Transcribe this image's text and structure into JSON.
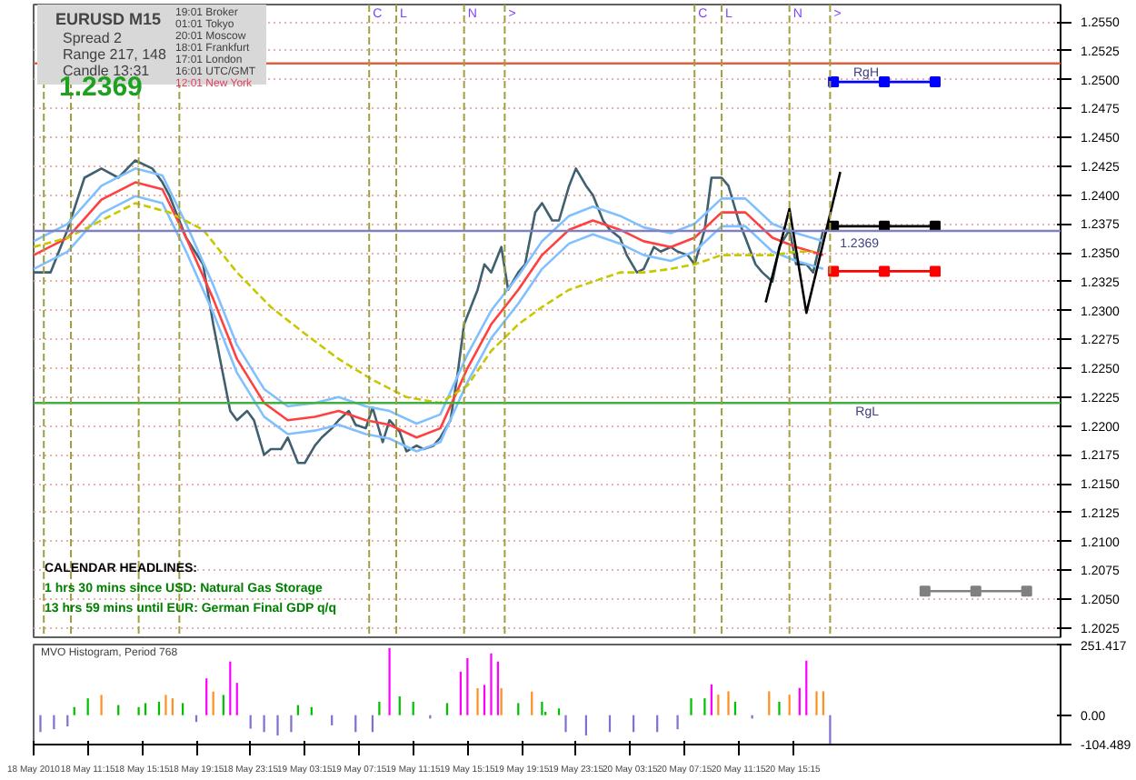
{
  "chart_data": [
    {
      "type": "line",
      "title": "EURUSD  M15",
      "tick_labels": "y",
      "grid": "y",
      "xlim": [
        "2010-05-18T07:15",
        "2010-05-21T11:00"
      ],
      "ylim": [
        1.2017,
        1.2565
      ],
      "yticks": [
        {
          "value": 1.2025,
          "label": "1.2025"
        },
        {
          "value": 1.205,
          "label": "1.2050"
        },
        {
          "value": 1.2075,
          "label": "1.2075"
        },
        {
          "value": 1.21,
          "label": "1.2100"
        },
        {
          "value": 1.2125,
          "label": "1.2125"
        },
        {
          "value": 1.215,
          "label": "1.2150"
        },
        {
          "value": 1.2175,
          "label": "1.2175"
        },
        {
          "value": 1.22,
          "label": "1.2200"
        },
        {
          "value": 1.2225,
          "label": "1.2225"
        },
        {
          "value": 1.225,
          "label": "1.2250"
        },
        {
          "value": 1.2275,
          "label": "1.2275"
        },
        {
          "value": 1.23,
          "label": "1.2300"
        },
        {
          "value": 1.2325,
          "label": "1.2325"
        },
        {
          "value": 1.235,
          "label": "1.2350"
        },
        {
          "value": 1.2375,
          "label": "1.2375"
        },
        {
          "value": 1.24,
          "label": "1.2400"
        },
        {
          "value": 1.2425,
          "label": "1.2425"
        },
        {
          "value": 1.245,
          "label": "1.2450"
        },
        {
          "value": 1.2475,
          "label": "1.2475"
        },
        {
          "value": 1.25,
          "label": "1.2500"
        },
        {
          "value": 1.2525,
          "label": "1.2525"
        },
        {
          "value": 1.255,
          "label": "1.2550"
        }
      ],
      "annotations": [
        "Spread  2",
        "Range  217, 148",
        "Candle  13:31",
        "1.2369",
        "19:01  Broker",
        "01:01  Tokyo",
        "20:01  Moscow",
        "18:01  Frankfurt",
        "17:01  London",
        "16:01  UTC/GMT",
        "12:01  New York",
        "CALENDAR  HEADLINES:",
        "1 hrs 30 mins since USD: Natural Gas Storage",
        "13 hrs 59 mins until EUR: German Final GDP q/q"
      ],
      "ref_lines": [
        {
          "axis": "y",
          "value": 1.2514,
          "label": "RgH",
          "color": "#e06040"
        },
        {
          "axis": "y",
          "value": 1.222,
          "label": "RgL",
          "color": "#40b040"
        },
        {
          "axis": "y",
          "value": 1.2369,
          "label": "1.2369",
          "color": "#8080c0"
        },
        {
          "axis": "x",
          "value": "2010-05-18T08:00",
          "label": null,
          "color": "#a0a040",
          "line_style": "dashed"
        },
        {
          "axis": "x",
          "value": "2010-05-18T10:00",
          "label": null,
          "color": "#a0a040",
          "line_style": "dashed"
        },
        {
          "axis": "x",
          "value": "2010-05-18T15:00",
          "label": null,
          "color": "#a0a040",
          "line_style": "dashed"
        },
        {
          "axis": "x",
          "value": "2010-05-18T18:00",
          "label": null,
          "color": "#a0a040",
          "line_style": "dashed"
        },
        {
          "axis": "x",
          "value": "2010-05-19T08:00",
          "label": "C",
          "color": "#a0a040",
          "line_style": "dashed"
        },
        {
          "axis": "x",
          "value": "2010-05-19T10:00",
          "label": "L",
          "color": "#a0a040",
          "line_style": "dashed"
        },
        {
          "axis": "x",
          "value": "2010-05-19T15:00",
          "label": "N",
          "color": "#a0a040",
          "line_style": "dashed"
        },
        {
          "axis": "x",
          "value": "2010-05-19T18:00",
          "label": ">",
          "color": "#a0a040",
          "line_style": "dashed"
        },
        {
          "axis": "x",
          "value": "2010-05-20T08:00",
          "label": "C",
          "color": "#a0a040",
          "line_style": "dashed"
        },
        {
          "axis": "x",
          "value": "2010-05-20T10:00",
          "label": "L",
          "color": "#a0a040",
          "line_style": "dashed"
        },
        {
          "axis": "x",
          "value": "2010-05-20T15:00",
          "label": "N",
          "color": "#a0a040",
          "line_style": "dashed"
        },
        {
          "axis": "x",
          "value": "2010-05-20T18:00",
          "label": ">",
          "color": "#a0a040",
          "line_style": "dashed"
        }
      ],
      "series": [
        {
          "color": "#406070",
          "line_style": "solid",
          "marker": "none",
          "x": [
            "2010-05-18T07:15",
            "2010-05-18T08:30",
            "2010-05-18T09:45",
            "2010-05-18T11:00",
            "2010-05-18T12:15",
            "2010-05-18T13:30",
            "2010-05-18T14:45",
            "2010-05-18T16:00",
            "2010-05-18T16:45",
            "2010-05-18T17:15",
            "2010-05-18T18:30",
            "2010-05-18T19:45",
            "2010-05-18T20:30",
            "2010-05-18T21:00",
            "2010-05-18T21:45",
            "2010-05-18T22:15",
            "2010-05-18T23:00",
            "2010-05-18T23:30",
            "2010-05-19T00:15",
            "2010-05-19T00:45",
            "2010-05-19T01:30",
            "2010-05-19T02:00",
            "2010-05-19T02:45",
            "2010-05-19T03:15",
            "2010-05-19T04:00",
            "2010-05-19T04:30",
            "2010-05-19T05:15",
            "2010-05-19T05:45",
            "2010-05-19T06:30",
            "2010-05-19T07:00",
            "2010-05-19T07:45",
            "2010-05-19T08:15",
            "2010-05-19T09:00",
            "2010-05-19T09:30",
            "2010-05-19T10:15",
            "2010-05-19T10:45",
            "2010-05-19T11:30",
            "2010-05-19T12:00",
            "2010-05-19T12:45",
            "2010-05-19T13:15",
            "2010-05-19T14:00",
            "2010-05-19T14:30",
            "2010-05-19T15:00",
            "2010-05-19T15:30",
            "2010-05-19T16:00",
            "2010-05-19T16:30",
            "2010-05-19T17:00",
            "2010-05-19T17:45",
            "2010-05-19T18:15",
            "2010-05-19T19:00",
            "2010-05-19T19:30",
            "2010-05-19T20:15",
            "2010-05-19T20:45",
            "2010-05-19T21:30",
            "2010-05-19T22:00",
            "2010-05-19T22:45",
            "2010-05-19T23:15",
            "2010-05-20T00:00",
            "2010-05-20T00:30",
            "2010-05-20T01:15",
            "2010-05-20T01:45",
            "2010-05-20T02:30",
            "2010-05-20T03:00",
            "2010-05-20T03:45",
            "2010-05-20T04:15",
            "2010-05-20T05:00",
            "2010-05-20T05:30",
            "2010-05-20T06:15",
            "2010-05-20T06:45",
            "2010-05-20T07:30",
            "2010-05-20T08:00",
            "2010-05-20T08:45",
            "2010-05-20T09:15",
            "2010-05-20T10:00",
            "2010-05-20T10:30",
            "2010-05-20T11:15",
            "2010-05-20T11:45",
            "2010-05-20T12:30",
            "2010-05-20T13:00",
            "2010-05-20T13:45",
            "2010-05-20T14:15",
            "2010-05-20T15:00",
            "2010-05-20T15:30",
            "2010-05-20T16:15",
            "2010-05-20T16:45",
            "2010-05-20T17:30"
          ],
          "values": [
            1.2333,
            1.2333,
            1.237,
            1.2415,
            1.2423,
            1.2415,
            1.243,
            1.2423,
            1.2411,
            1.24,
            1.2363,
            1.234,
            1.2288,
            1.2258,
            1.2213,
            1.2205,
            1.2213,
            1.2205,
            1.2175,
            1.218,
            1.218,
            1.219,
            1.2168,
            1.2168,
            1.2183,
            1.219,
            1.2198,
            1.2205,
            1.2213,
            1.2201,
            1.2198,
            1.2216,
            1.2186,
            1.2205,
            1.2195,
            1.2178,
            1.2183,
            1.218,
            1.2183,
            1.219,
            1.2205,
            1.2243,
            1.2288,
            1.2303,
            1.2318,
            1.234,
            1.2333,
            1.2355,
            1.2318,
            1.2333,
            1.234,
            1.2385,
            1.2393,
            1.2378,
            1.2378,
            1.2408,
            1.2423,
            1.2408,
            1.24,
            1.2378,
            1.237,
            1.2363,
            1.2348,
            1.2333,
            1.2336,
            1.2355,
            1.2351,
            1.2355,
            1.2351,
            1.2348,
            1.234,
            1.237,
            1.2415,
            1.2415,
            1.2408,
            1.2378,
            1.2363,
            1.234,
            1.2333,
            1.2325,
            1.2355,
            1.237,
            1.234,
            1.234,
            1.2333,
            1.237
          ]
        },
        {
          "color": "#80c0ff",
          "line_style": "solid",
          "marker": "none",
          "x": [
            "2010-05-18T07:15",
            "2010-05-18T09:45",
            "2010-05-18T12:15",
            "2010-05-18T14:45",
            "2010-05-18T16:45",
            "2010-05-18T18:30",
            "2010-05-18T20:30",
            "2010-05-18T22:15",
            "2010-05-19T00:15",
            "2010-05-19T02:00",
            "2010-05-19T04:00",
            "2010-05-19T05:45",
            "2010-05-19T07:45",
            "2010-05-19T09:30",
            "2010-05-19T11:30",
            "2010-05-19T13:15",
            "2010-05-19T15:15",
            "2010-05-19T17:00",
            "2010-05-19T19:00",
            "2010-05-19T20:45",
            "2010-05-19T22:45",
            "2010-05-20T00:30",
            "2010-05-20T02:30",
            "2010-05-20T04:15",
            "2010-05-20T06:15",
            "2010-05-20T08:00",
            "2010-05-20T10:00",
            "2010-05-20T11:45",
            "2010-05-20T13:45",
            "2010-05-20T15:30",
            "2010-05-20T17:30"
          ],
          "values": [
            1.236,
            1.2375,
            1.2408,
            1.2423,
            1.2417,
            1.2375,
            1.2322,
            1.227,
            1.2232,
            1.2217,
            1.222,
            1.2225,
            1.2217,
            1.2213,
            1.2202,
            1.221,
            1.2262,
            1.23,
            1.233,
            1.236,
            1.2382,
            1.239,
            1.2382,
            1.2372,
            1.2367,
            1.2375,
            1.2397,
            1.2397,
            1.2375,
            1.2367,
            1.236
          ]
        },
        {
          "color": "#ff4040",
          "line_style": "solid",
          "marker": "none",
          "x": [
            "2010-05-18T07:15",
            "2010-05-18T09:45",
            "2010-05-18T12:15",
            "2010-05-18T14:45",
            "2010-05-18T16:45",
            "2010-05-18T18:30",
            "2010-05-18T20:30",
            "2010-05-18T22:15",
            "2010-05-19T00:15",
            "2010-05-19T02:00",
            "2010-05-19T04:00",
            "2010-05-19T05:45",
            "2010-05-19T07:45",
            "2010-05-19T09:30",
            "2010-05-19T11:30",
            "2010-05-19T13:15",
            "2010-05-19T15:15",
            "2010-05-19T17:00",
            "2010-05-19T19:00",
            "2010-05-19T20:45",
            "2010-05-19T22:45",
            "2010-05-20T00:30",
            "2010-05-20T02:30",
            "2010-05-20T04:15",
            "2010-05-20T06:15",
            "2010-05-20T08:00",
            "2010-05-20T10:00",
            "2010-05-20T11:45",
            "2010-05-20T13:45",
            "2010-05-20T15:30",
            "2010-05-20T17:30"
          ],
          "values": [
            1.2348,
            1.2363,
            1.2396,
            1.2411,
            1.2405,
            1.2363,
            1.231,
            1.2258,
            1.222,
            1.2205,
            1.2208,
            1.2213,
            1.2205,
            1.2201,
            1.219,
            1.2198,
            1.225,
            1.2288,
            1.2318,
            1.2348,
            1.237,
            1.2378,
            1.237,
            1.236,
            1.2355,
            1.2363,
            1.2385,
            1.2385,
            1.2363,
            1.2355,
            1.2348
          ]
        },
        {
          "color": "#80c0ff",
          "line_style": "solid",
          "marker": "none",
          "x": [
            "2010-05-18T07:15",
            "2010-05-18T09:45",
            "2010-05-18T12:15",
            "2010-05-18T14:45",
            "2010-05-18T16:45",
            "2010-05-18T18:30",
            "2010-05-18T20:30",
            "2010-05-18T22:15",
            "2010-05-19T00:15",
            "2010-05-19T02:00",
            "2010-05-19T04:00",
            "2010-05-19T05:45",
            "2010-05-19T07:45",
            "2010-05-19T09:30",
            "2010-05-19T11:30",
            "2010-05-19T13:15",
            "2010-05-19T15:15",
            "2010-05-19T17:00",
            "2010-05-19T19:00",
            "2010-05-19T20:45",
            "2010-05-19T22:45",
            "2010-05-20T00:30",
            "2010-05-20T02:30",
            "2010-05-20T04:15",
            "2010-05-20T06:15",
            "2010-05-20T08:00",
            "2010-05-20T10:00",
            "2010-05-20T11:45",
            "2010-05-20T13:45",
            "2010-05-20T15:30",
            "2010-05-20T17:30"
          ],
          "values": [
            1.2336,
            1.2351,
            1.2384,
            1.2399,
            1.2393,
            1.2351,
            1.2298,
            1.2246,
            1.2208,
            1.2193,
            1.2196,
            1.2201,
            1.2193,
            1.2189,
            1.2178,
            1.2186,
            1.2238,
            1.2276,
            1.2306,
            1.2336,
            1.2358,
            1.2366,
            1.2358,
            1.2348,
            1.2343,
            1.2351,
            1.2373,
            1.2373,
            1.2351,
            1.2343,
            1.2336
          ]
        },
        {
          "color": "#c8c800",
          "line_style": "dashed",
          "marker": "none",
          "x": [
            "2010-05-18T07:15",
            "2010-05-18T09:45",
            "2010-05-18T12:15",
            "2010-05-18T14:45",
            "2010-05-18T17:15",
            "2010-05-18T19:45",
            "2010-05-18T22:15",
            "2010-05-19T00:45",
            "2010-05-19T03:15",
            "2010-05-19T05:45",
            "2010-05-19T08:15",
            "2010-05-19T10:45",
            "2010-05-19T13:15",
            "2010-05-19T15:15",
            "2010-05-19T17:00",
            "2010-05-19T19:00",
            "2010-05-19T20:45",
            "2010-05-19T22:45",
            "2010-05-20T00:30",
            "2010-05-20T02:30",
            "2010-05-20T04:15",
            "2010-05-20T06:15",
            "2010-05-20T08:00",
            "2010-05-20T10:00",
            "2010-05-20T11:45",
            "2010-05-20T13:45",
            "2010-05-20T15:30",
            "2010-05-20T16:45"
          ],
          "values": [
            1.2355,
            1.2363,
            1.2378,
            1.2393,
            1.2385,
            1.237,
            1.2333,
            1.2303,
            1.228,
            1.2258,
            1.224,
            1.2225,
            1.222,
            1.2235,
            1.2265,
            1.2288,
            1.2303,
            1.2318,
            1.2325,
            1.2333,
            1.2333,
            1.2336,
            1.234,
            1.2348,
            1.2348,
            1.2348,
            1.2351,
            1.2351
          ]
        },
        {
          "color": "#000000",
          "line_style": "solid",
          "marker": "none",
          "x": [
            "2010-05-20T13:15",
            "2010-05-20T15:00",
            "2010-05-20T16:15",
            "2010-05-20T18:45"
          ],
          "values": [
            1.2307,
            1.2388,
            1.2298,
            1.242
          ]
        },
        {
          "color": "#0000ff",
          "line_style": "solid",
          "marker": "square",
          "x": [
            "2010-05-20T18:15",
            "2010-05-20T22:00",
            "2010-05-21T01:45"
          ],
          "values": [
            1.2498,
            1.2498,
            1.2498
          ]
        },
        {
          "color": "#000000",
          "line_style": "solid",
          "marker": "square",
          "x": [
            "2010-05-20T18:15",
            "2010-05-20T22:00",
            "2010-05-21T01:45"
          ],
          "values": [
            1.2373,
            1.2373,
            1.2373
          ]
        },
        {
          "color": "#ff0000",
          "line_style": "solid",
          "marker": "square",
          "x": [
            "2010-05-20T18:15",
            "2010-05-20T22:00",
            "2010-05-21T01:45"
          ],
          "values": [
            1.2334,
            1.2334,
            1.2334
          ]
        },
        {
          "color": "#808080",
          "line_style": "solid",
          "marker": "square",
          "x": [
            "2010-05-21T01:00",
            "2010-05-21T04:45",
            "2010-05-21T08:30"
          ],
          "values": [
            1.2057,
            1.2057,
            1.2057
          ]
        }
      ]
    },
    {
      "type": "bar",
      "title": "MVO Histogram, Period 768",
      "grid": false,
      "xlim": [
        "2010-05-18T07:15",
        "2010-05-21T11:00"
      ],
      "ylim": [
        -104.489,
        251.417
      ],
      "yticks": [
        251.417,
        {
          "value": 0,
          "label": "0.00"
        },
        -104.489
      ],
      "xticks": [
        {
          "value": "2010-05-18T07:15",
          "label": "18 May 2010"
        },
        {
          "value": "2010-05-18T11:15",
          "label": "18 May 11:15"
        },
        {
          "value": "2010-05-18T15:15",
          "label": "18 May 15:15"
        },
        {
          "value": "2010-05-18T19:15",
          "label": "18 May 19:15"
        },
        {
          "value": "2010-05-18T23:15",
          "label": "18 May 23:15"
        },
        {
          "value": "2010-05-19T03:15",
          "label": "19 May 03:15"
        },
        {
          "value": "2010-05-19T07:15",
          "label": "19 May 07:15"
        },
        {
          "value": "2010-05-19T11:15",
          "label": "19 May 11:15"
        },
        {
          "value": "2010-05-19T15:15",
          "label": "19 May 15:15"
        },
        {
          "value": "2010-05-19T19:15",
          "label": "19 May 19:15"
        },
        {
          "value": "2010-05-19T23:15",
          "label": "19 May 23:15"
        },
        {
          "value": "2010-05-20T03:15",
          "label": "20 May 03:15"
        },
        {
          "value": "2010-05-20T07:15",
          "label": "20 May 07:15"
        },
        {
          "value": "2010-05-20T11:15",
          "label": "20 May 11:15"
        },
        {
          "value": "2010-05-20T15:15",
          "label": "20 May 15:15"
        }
      ],
      "x": [
        "2010-05-18T07:45",
        "2010-05-18T08:45",
        "2010-05-18T09:45",
        "2010-05-18T10:15",
        "2010-05-18T11:15",
        "2010-05-18T12:15",
        "2010-05-18T13:30",
        "2010-05-18T15:00",
        "2010-05-18T15:30",
        "2010-05-18T16:30",
        "2010-05-18T17:00",
        "2010-05-18T17:30",
        "2010-05-18T18:15",
        "2010-05-18T19:15",
        "2010-05-18T20:00",
        "2010-05-18T20:30",
        "2010-05-18T21:15",
        "2010-05-18T21:45",
        "2010-05-18T22:15",
        "2010-05-18T23:15",
        "2010-05-19T00:15",
        "2010-05-19T01:15",
        "2010-05-19T02:15",
        "2010-05-19T02:45",
        "2010-05-19T03:45",
        "2010-05-19T05:15",
        "2010-05-19T07:00",
        "2010-05-19T08:15",
        "2010-05-19T08:45",
        "2010-05-19T09:30",
        "2010-05-19T10:15",
        "2010-05-19T11:15",
        "2010-05-19T12:30",
        "2010-05-19T13:45",
        "2010-05-19T14:45",
        "2010-05-19T15:15",
        "2010-05-19T16:00",
        "2010-05-19T16:30",
        "2010-05-19T17:00",
        "2010-05-19T17:30",
        "2010-05-19T17:45",
        "2010-05-19T19:00",
        "2010-05-19T20:00",
        "2010-05-19T20:45",
        "2010-05-19T21:00",
        "2010-05-19T22:00",
        "2010-05-19T22:30",
        "2010-05-20T00:00",
        "2010-05-20T01:45",
        "2010-05-20T03:30",
        "2010-05-20T05:15",
        "2010-05-20T06:45",
        "2010-05-20T07:45",
        "2010-05-20T08:45",
        "2010-05-20T09:15",
        "2010-05-20T09:45",
        "2010-05-20T10:30",
        "2010-05-20T11:00",
        "2010-05-20T12:15",
        "2010-05-20T13:30",
        "2010-05-20T14:15",
        "2010-05-20T15:00",
        "2010-05-20T15:45",
        "2010-05-20T16:15",
        "2010-05-20T17:00",
        "2010-05-20T17:30",
        "2010-05-20T18:00"
      ],
      "values": [
        -60,
        -50,
        -40,
        29,
        60,
        72,
        36,
        29,
        43,
        48,
        72,
        60,
        43,
        -24,
        131,
        84,
        72,
        191,
        115,
        -48,
        -60,
        -72,
        -60,
        36,
        29,
        -36,
        -60,
        -60,
        48,
        239,
        67,
        48,
        -12,
        43,
        155,
        203,
        96,
        108,
        220,
        191,
        96,
        43,
        84,
        48,
        12,
        24,
        -60,
        -72,
        -60,
        -60,
        -60,
        -50,
        60,
        60,
        109,
        73,
        85,
        48,
        -12,
        85,
        48,
        73,
        97,
        194,
        85,
        85,
        -104
      ],
      "colors": [
        "#8070d0",
        "#8070d0",
        "#8070d0",
        "#00c000",
        "#00c000",
        "#ff9020",
        "#00c000",
        "#00c000",
        "#00c000",
        "#00c000",
        "#ff9020",
        "#ff9020",
        "#00c000",
        "#8070d0",
        "#ff00ff",
        "#ff9020",
        "#00c000",
        "#ff00ff",
        "#ff00ff",
        "#8070d0",
        "#8070d0",
        "#8070d0",
        "#8070d0",
        "#00c000",
        "#00c000",
        "#8070d0",
        "#8070d0",
        "#8070d0",
        "#00c000",
        "#ff00ff",
        "#00c000",
        "#00c000",
        "#8070d0",
        "#00c000",
        "#ff00ff",
        "#ff00ff",
        "#ff9020",
        "#ff00ff",
        "#ff00ff",
        "#ff00ff",
        "#ff9020",
        "#00c000",
        "#ff9020",
        "#00c000",
        "#00c000",
        "#00c000",
        "#8070d0",
        "#8070d0",
        "#8070d0",
        "#8070d0",
        "#8070d0",
        "#8070d0",
        "#00c000",
        "#00c000",
        "#ff00ff",
        "#ff9020",
        "#ff9020",
        "#00c000",
        "#8070d0",
        "#ff9020",
        "#00c000",
        "#ff9020",
        "#ff00ff",
        "#ff00ff",
        "#ff9020",
        "#ff9020",
        "#8070d0"
      ]
    }
  ]
}
